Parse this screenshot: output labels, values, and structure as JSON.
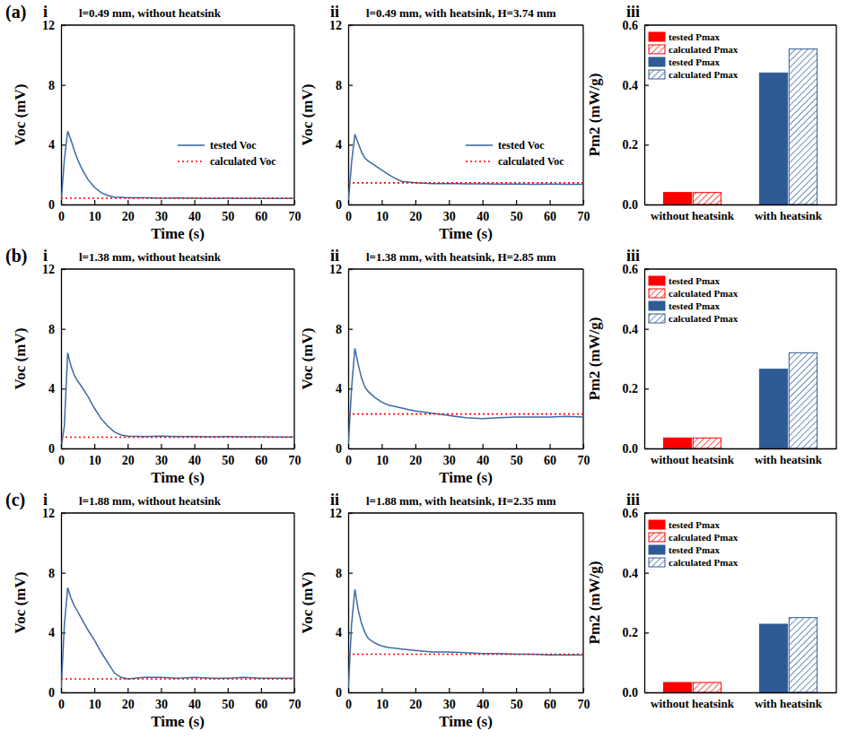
{
  "chart_data": [
    {
      "type": "line",
      "panel": "(a)",
      "subpanel": "i",
      "title": "l=0.49 mm, without heatsink",
      "x_label": "Time (s)",
      "y_label": "Voc (mV)",
      "x": [
        0,
        1,
        2,
        3,
        4,
        5,
        6,
        8,
        10,
        12,
        14,
        16,
        18,
        20,
        25,
        30,
        35,
        40,
        45,
        50,
        55,
        60,
        65,
        70
      ],
      "xlim": [
        0,
        70
      ],
      "xticks": [
        0,
        10,
        20,
        30,
        40,
        50,
        60,
        70
      ],
      "ylim": [
        0,
        12
      ],
      "yticks": [
        0,
        4,
        8,
        12
      ],
      "legend": "right",
      "series": [
        {
          "name": "tested Voc",
          "color": "#3b6aa5",
          "line_style": "solid",
          "values": [
            0,
            3.0,
            4.9,
            4.3,
            3.6,
            3.0,
            2.5,
            1.7,
            1.15,
            0.8,
            0.6,
            0.5,
            0.48,
            0.45,
            0.45,
            0.42,
            0.43,
            0.42,
            0.41,
            0.42,
            0.41,
            0.4,
            0.41,
            0.4
          ]
        },
        {
          "name": "calculated Voc",
          "color": "#ff0000",
          "line_style": "dotted",
          "values": [
            0.42,
            0.42,
            0.42,
            0.42,
            0.42,
            0.42,
            0.42,
            0.42,
            0.42,
            0.42,
            0.42,
            0.42,
            0.42,
            0.42,
            0.42,
            0.42,
            0.42,
            0.42,
            0.42,
            0.42,
            0.42,
            0.42,
            0.42,
            0.42
          ]
        }
      ]
    },
    {
      "type": "line",
      "subpanel": "ii",
      "title": "l=0.49 mm, with heatsink, H=3.74 mm",
      "x_label": "Time (s)",
      "y_label": "Voc (mV)",
      "x": [
        0,
        1,
        2,
        3,
        4,
        5,
        6,
        8,
        10,
        12,
        14,
        16,
        18,
        20,
        25,
        30,
        35,
        40,
        45,
        50,
        55,
        60,
        65,
        70
      ],
      "xlim": [
        0,
        70
      ],
      "xticks": [
        0,
        10,
        20,
        30,
        40,
        50,
        60,
        70
      ],
      "ylim": [
        0,
        12
      ],
      "yticks": [
        0,
        4,
        8,
        12
      ],
      "legend": "right",
      "series": [
        {
          "name": "tested Voc",
          "color": "#3b6aa5",
          "line_style": "solid",
          "values": [
            0,
            2.8,
            4.7,
            4.1,
            3.5,
            3.1,
            2.9,
            2.6,
            2.3,
            2.0,
            1.75,
            1.55,
            1.5,
            1.45,
            1.4,
            1.4,
            1.38,
            1.38,
            1.36,
            1.37,
            1.35,
            1.36,
            1.35,
            1.35
          ]
        },
        {
          "name": "calculated Voc",
          "color": "#ff0000",
          "line_style": "dotted",
          "values": [
            1.45,
            1.45,
            1.45,
            1.45,
            1.45,
            1.45,
            1.45,
            1.45,
            1.45,
            1.45,
            1.45,
            1.45,
            1.45,
            1.45,
            1.45,
            1.45,
            1.45,
            1.45,
            1.45,
            1.45,
            1.45,
            1.45,
            1.45,
            1.45
          ]
        }
      ]
    },
    {
      "type": "bar",
      "subpanel": "iii",
      "y_label": "Pm2 (mW/g)",
      "categories": [
        "without heatsink",
        "with heatsink"
      ],
      "ylim": [
        0,
        0.6
      ],
      "yticks": [
        {
          "value": 0,
          "label": "0.0"
        },
        {
          "value": 0.2,
          "label": "0.2"
        },
        {
          "value": 0.4,
          "label": "0.4"
        },
        {
          "value": 0.6,
          "label": "0.6"
        }
      ],
      "legend": "upper left",
      "series": [
        {
          "name": "tested Pmax",
          "color": "#ff0000",
          "line_style": "solid",
          "values": [
            0.04,
            null
          ]
        },
        {
          "name": "calculated Pmax",
          "color": "#ff0000",
          "line_style": "hatched",
          "values": [
            0.04,
            null
          ]
        },
        {
          "name": "tested Pmax",
          "color": "#2e5b95",
          "line_style": "solid",
          "values": [
            null,
            0.44
          ]
        },
        {
          "name": "calculated Pmax",
          "color": "#2e5b95",
          "line_style": "hatched",
          "values": [
            null,
            0.52
          ]
        }
      ]
    },
    {
      "type": "line",
      "panel": "(b)",
      "subpanel": "i",
      "title": "l=1.38 mm, without heatsink",
      "x_label": "Time (s)",
      "y_label": "Voc (mV)",
      "x": [
        0,
        1,
        2,
        3,
        4,
        5,
        6,
        8,
        10,
        12,
        14,
        16,
        18,
        20,
        25,
        30,
        35,
        40,
        45,
        50,
        55,
        60,
        65,
        70
      ],
      "xlim": [
        0,
        70
      ],
      "xticks": [
        0,
        10,
        20,
        30,
        40,
        50,
        60,
        70
      ],
      "ylim": [
        0,
        12
      ],
      "yticks": [
        0,
        4,
        8,
        12
      ],
      "series": [
        {
          "color": "#3b6aa5",
          "line_style": "solid",
          "values": [
            0,
            1.5,
            6.4,
            5.5,
            4.9,
            4.5,
            4.2,
            3.5,
            2.7,
            2.0,
            1.5,
            1.1,
            0.9,
            0.82,
            0.8,
            0.82,
            0.8,
            0.8,
            0.78,
            0.8,
            0.78,
            0.78,
            0.77,
            0.77
          ]
        },
        {
          "color": "#ff0000",
          "line_style": "dotted",
          "values": [
            0.75,
            0.75,
            0.75,
            0.75,
            0.75,
            0.75,
            0.75,
            0.75,
            0.75,
            0.75,
            0.75,
            0.75,
            0.75,
            0.75,
            0.75,
            0.75,
            0.75,
            0.75,
            0.75,
            0.75,
            0.75,
            0.75,
            0.75,
            0.75
          ]
        }
      ]
    },
    {
      "type": "line",
      "subpanel": "ii",
      "title": "l=1.38 mm, with heatsink, H=2.85 mm",
      "x_label": "Time (s)",
      "y_label": "Voc (mV)",
      "x": [
        0,
        1,
        2,
        3,
        4,
        5,
        6,
        8,
        10,
        12,
        14,
        16,
        18,
        20,
        25,
        30,
        35,
        40,
        45,
        50,
        55,
        60,
        65,
        70
      ],
      "xlim": [
        0,
        70
      ],
      "xticks": [
        0,
        10,
        20,
        30,
        40,
        50,
        60,
        70
      ],
      "ylim": [
        0,
        12
      ],
      "yticks": [
        0,
        4,
        8,
        12
      ],
      "series": [
        {
          "color": "#3b6aa5",
          "line_style": "solid",
          "values": [
            0,
            4.0,
            6.7,
            5.6,
            4.7,
            4.1,
            3.8,
            3.4,
            3.1,
            2.9,
            2.8,
            2.7,
            2.6,
            2.5,
            2.35,
            2.2,
            2.05,
            2.0,
            2.05,
            2.1,
            2.1,
            2.1,
            2.15,
            2.1
          ]
        },
        {
          "color": "#ff0000",
          "line_style": "dotted",
          "values": [
            2.3,
            2.3,
            2.3,
            2.3,
            2.3,
            2.3,
            2.3,
            2.3,
            2.3,
            2.3,
            2.3,
            2.3,
            2.3,
            2.3,
            2.3,
            2.3,
            2.3,
            2.3,
            2.3,
            2.3,
            2.3,
            2.3,
            2.3,
            2.3
          ]
        }
      ]
    },
    {
      "type": "bar",
      "subpanel": "iii",
      "y_label": "Pm2 (mW/g)",
      "categories": [
        "without heatsink",
        "with heatsink"
      ],
      "ylim": [
        0,
        0.6
      ],
      "yticks": [
        {
          "value": 0,
          "label": "0.0"
        },
        {
          "value": 0.2,
          "label": "0.2"
        },
        {
          "value": 0.4,
          "label": "0.4"
        },
        {
          "value": 0.6,
          "label": "0.6"
        }
      ],
      "legend": "upper left",
      "series": [
        {
          "name": "tested Pmax",
          "color": "#ff0000",
          "line_style": "solid",
          "values": [
            0.035,
            null
          ]
        },
        {
          "name": "calculated Pmax",
          "color": "#ff0000",
          "line_style": "hatched",
          "values": [
            0.035,
            null
          ]
        },
        {
          "name": "tested Pmax",
          "color": "#2e5b95",
          "line_style": "solid",
          "values": [
            null,
            0.265
          ]
        },
        {
          "name": "calculated Pmax",
          "color": "#2e5b95",
          "line_style": "hatched",
          "values": [
            null,
            0.32
          ]
        }
      ]
    },
    {
      "type": "line",
      "panel": "(c)",
      "subpanel": "i",
      "title": "l=1.88 mm, without heatsink",
      "x_label": "Time (s)",
      "y_label": "Voc (mV)",
      "x": [
        0,
        1,
        2,
        3,
        4,
        5,
        6,
        8,
        10,
        12,
        14,
        16,
        18,
        20,
        25,
        30,
        35,
        40,
        45,
        50,
        55,
        60,
        65,
        70
      ],
      "xlim": [
        0,
        70
      ],
      "xticks": [
        0,
        10,
        20,
        30,
        40,
        50,
        60,
        70
      ],
      "ylim": [
        0,
        12
      ],
      "yticks": [
        0,
        4,
        8,
        12
      ],
      "series": [
        {
          "color": "#3b6aa5",
          "line_style": "solid",
          "values": [
            0,
            4.5,
            7.0,
            6.3,
            5.8,
            5.4,
            5.0,
            4.2,
            3.5,
            2.7,
            2.0,
            1.3,
            1.0,
            0.9,
            1.0,
            1.0,
            0.95,
            1.0,
            0.95,
            0.95,
            1.0,
            0.95,
            0.95,
            0.95
          ]
        },
        {
          "color": "#ff0000",
          "line_style": "dotted",
          "values": [
            0.9,
            0.9,
            0.9,
            0.9,
            0.9,
            0.9,
            0.9,
            0.9,
            0.9,
            0.9,
            0.9,
            0.9,
            0.9,
            0.9,
            0.9,
            0.9,
            0.9,
            0.9,
            0.9,
            0.9,
            0.9,
            0.9,
            0.9,
            0.9
          ]
        }
      ]
    },
    {
      "type": "line",
      "subpanel": "ii",
      "title": "l=1.88 mm, with heatsink, H=2.35 mm",
      "x_label": "Time (s)",
      "y_label": "Voc (mV)",
      "x": [
        0,
        1,
        2,
        3,
        4,
        5,
        6,
        8,
        10,
        12,
        14,
        16,
        18,
        20,
        25,
        30,
        35,
        40,
        45,
        50,
        55,
        60,
        65,
        70
      ],
      "xlim": [
        0,
        70
      ],
      "xticks": [
        0,
        10,
        20,
        30,
        40,
        50,
        60,
        70
      ],
      "ylim": [
        0,
        12
      ],
      "yticks": [
        0,
        4,
        8,
        12
      ],
      "series": [
        {
          "color": "#3b6aa5",
          "line_style": "solid",
          "values": [
            0,
            4.5,
            6.9,
            5.5,
            4.6,
            4.0,
            3.6,
            3.3,
            3.1,
            3.0,
            2.95,
            2.9,
            2.85,
            2.8,
            2.7,
            2.7,
            2.65,
            2.6,
            2.6,
            2.55,
            2.55,
            2.5,
            2.5,
            2.5
          ]
        },
        {
          "color": "#ff0000",
          "line_style": "dotted",
          "values": [
            2.55,
            2.55,
            2.55,
            2.55,
            2.55,
            2.55,
            2.55,
            2.55,
            2.55,
            2.55,
            2.55,
            2.55,
            2.55,
            2.55,
            2.55,
            2.55,
            2.55,
            2.55,
            2.55,
            2.55,
            2.55,
            2.55,
            2.55,
            2.55
          ]
        }
      ]
    },
    {
      "type": "bar",
      "subpanel": "iii",
      "y_label": "Pm2 (mW/g)",
      "categories": [
        "without heatsink",
        "with heatsink"
      ],
      "ylim": [
        0,
        0.6
      ],
      "yticks": [
        {
          "value": 0,
          "label": "0.0"
        },
        {
          "value": 0.2,
          "label": "0.2"
        },
        {
          "value": 0.4,
          "label": "0.4"
        },
        {
          "value": 0.6,
          "label": "0.6"
        }
      ],
      "legend": "upper left",
      "series": [
        {
          "name": "tested Pmax",
          "color": "#ff0000",
          "line_style": "solid",
          "values": [
            0.033,
            null
          ]
        },
        {
          "name": "calculated Pmax",
          "color": "#ff0000",
          "line_style": "hatched",
          "values": [
            0.033,
            null
          ]
        },
        {
          "name": "tested Pmax",
          "color": "#2e5b95",
          "line_style": "solid",
          "values": [
            null,
            0.228
          ]
        },
        {
          "name": "calculated Pmax",
          "color": "#2e5b95",
          "line_style": "hatched",
          "values": [
            null,
            0.25
          ]
        }
      ]
    }
  ]
}
